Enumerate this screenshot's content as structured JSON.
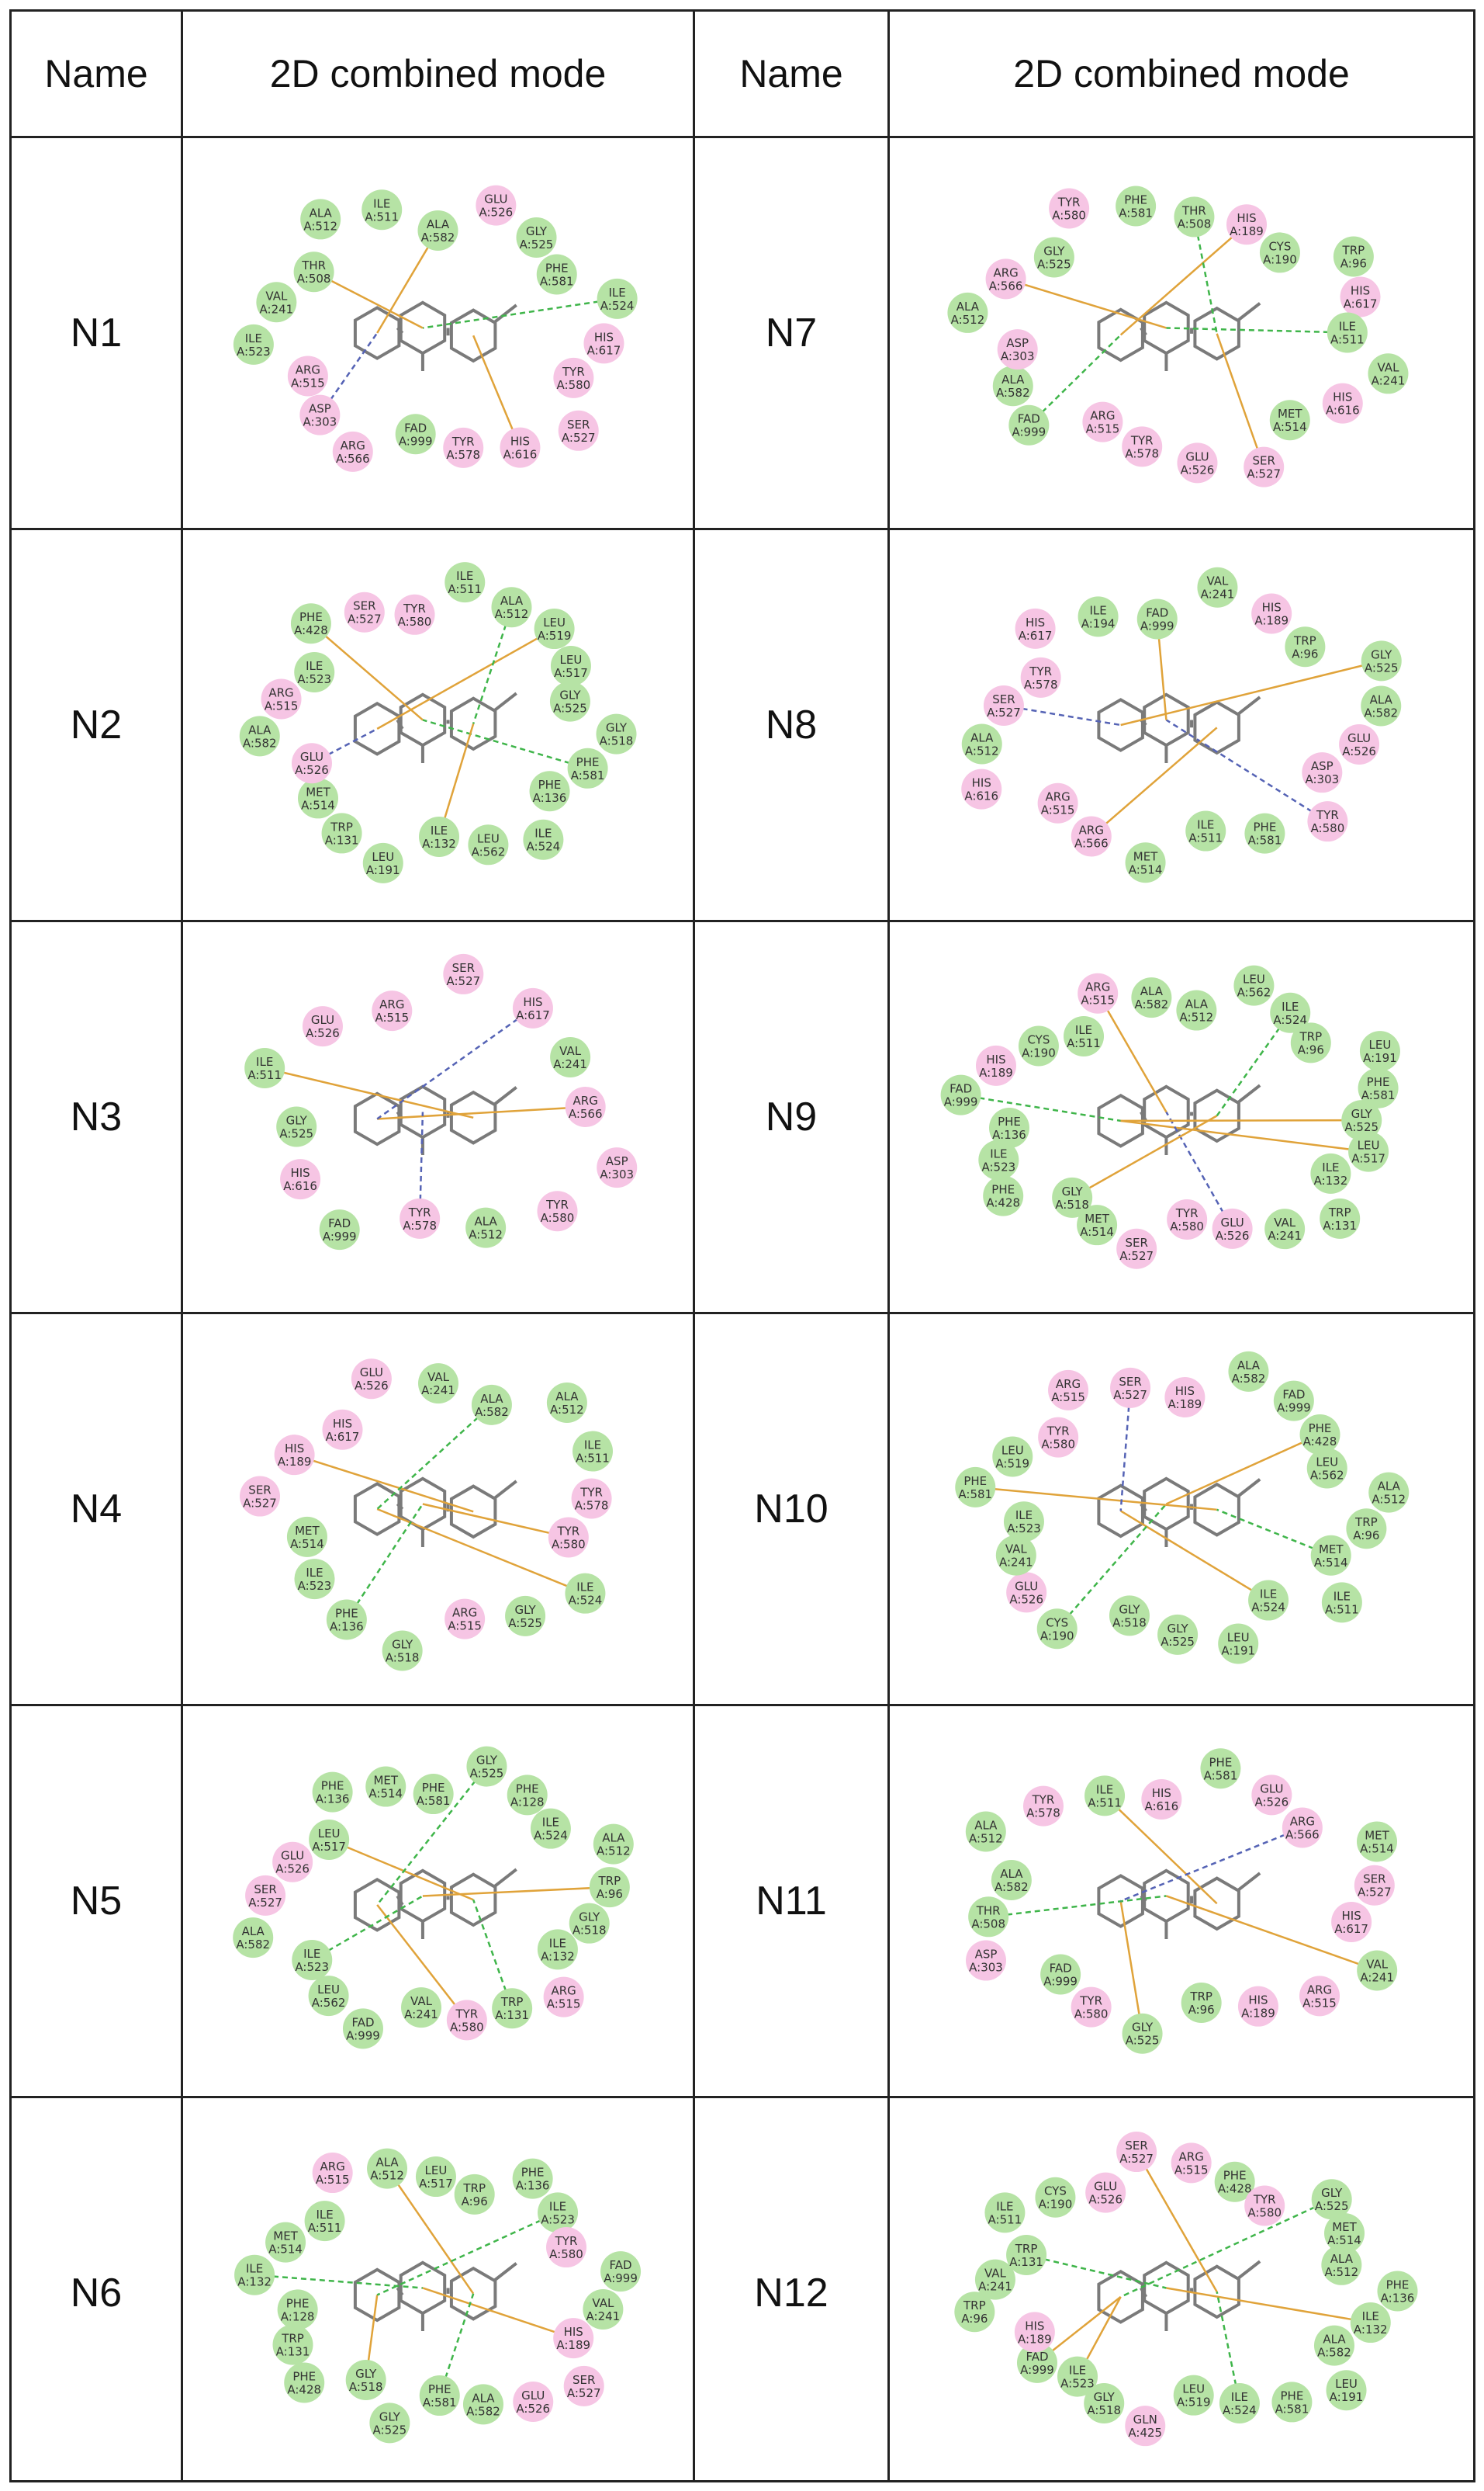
{
  "header": {
    "name_col": "Name",
    "mode_col": "2D combined mode"
  },
  "colors": {
    "hydrophobic": "#b6e3a5",
    "polar": "#f6c5e4",
    "bond": "#7a7a7a",
    "hbond": "#3fb54a",
    "pi": "#e0a33a",
    "salt": "#5563b5"
  },
  "rows": [
    {
      "left": {
        "name": "N1",
        "residues": [
          "ALA A:582",
          "GLU A:526",
          "GLY A:525",
          "PHE A:581",
          "ILE A:524",
          "HIS A:617",
          "TYR A:580",
          "SER A:527",
          "HIS A:616",
          "TYR A:578",
          "FAD A:999",
          "ARG A:566",
          "ASP A:303",
          "ARG A:515",
          "ILE A:523",
          "VAL A:241",
          "THR A:508",
          "ALA A:512",
          "ILE A:511"
        ]
      },
      "right": {
        "name": "N7",
        "residues": [
          "HIS A:189",
          "CYS A:190",
          "TRP A:96",
          "HIS A:617",
          "ILE A:511",
          "VAL A:241",
          "HIS A:616",
          "MET A:514",
          "SER A:527",
          "GLU A:526",
          "TYR A:578",
          "ARG A:515",
          "FAD A:999",
          "ALA A:582",
          "ASP A:303",
          "ALA A:512",
          "ARG A:566",
          "GLY A:525",
          "TYR A:580",
          "PHE A:581",
          "THR A:508"
        ]
      }
    },
    {
      "left": {
        "name": "N2",
        "residues": [
          "LEU A:519",
          "LEU A:517",
          "GLY A:525",
          "GLY A:518",
          "PHE A:581",
          "PHE A:136",
          "ILE A:524",
          "LEU A:562",
          "ILE A:132",
          "LEU A:191",
          "TRP A:131",
          "MET A:514",
          "GLU A:526",
          "ALA A:582",
          "ARG A:515",
          "ILE A:523",
          "PHE A:428",
          "SER A:527",
          "TYR A:580",
          "ILE A:511",
          "ALA A:512"
        ]
      },
      "right": {
        "name": "N8",
        "residues": [
          "GLY A:525",
          "ALA A:582",
          "GLU A:526",
          "ASP A:303",
          "TYR A:580",
          "PHE A:581",
          "ILE A:511",
          "MET A:514",
          "ARG A:566",
          "ARG A:515",
          "HIS A:616",
          "ALA A:512",
          "SER A:527",
          "TYR A:578",
          "HIS A:617",
          "ILE A:194",
          "FAD A:999",
          "VAL A:241",
          "HIS A:189",
          "TRP A:96"
        ]
      }
    },
    {
      "left": {
        "name": "N3",
        "residues": [
          "ARG A:566",
          "ASP A:303",
          "TYR A:580",
          "ALA A:512",
          "TYR A:578",
          "FAD A:999",
          "HIS A:616",
          "GLY A:525",
          "ILE A:511",
          "GLU A:526",
          "ARG A:515",
          "SER A:527",
          "HIS A:617",
          "VAL A:241"
        ]
      },
      "right": {
        "name": "N9",
        "residues": [
          "LEU A:517",
          "ILE A:132",
          "TRP A:131",
          "VAL A:241",
          "GLU A:526",
          "TYR A:580",
          "SER A:527",
          "MET A:514",
          "GLY A:518",
          "PHE A:428",
          "ILE A:523",
          "PHE A:136",
          "FAD A:999",
          "HIS A:189",
          "CYS A:190",
          "ILE A:511",
          "ARG A:515",
          "ALA A:582",
          "ALA A:512",
          "LEU A:562",
          "ILE A:524",
          "TRP A:96",
          "LEU A:191",
          "PHE A:581",
          "GLY A:525"
        ]
      }
    },
    {
      "left": {
        "name": "N4",
        "residues": [
          "ILE A:524",
          "GLY A:525",
          "ARG A:515",
          "GLY A:518",
          "PHE A:136",
          "ILE A:523",
          "MET A:514",
          "SER A:527",
          "HIS A:189",
          "HIS A:617",
          "GLU A:526",
          "VAL A:241",
          "ALA A:582",
          "ALA A:512",
          "ILE A:511",
          "TYR A:578",
          "TYR A:580"
        ]
      },
      "right": {
        "name": "N10",
        "residues": [
          "ILE A:524",
          "LEU A:191",
          "GLY A:525",
          "GLY A:518",
          "CYS A:190",
          "GLU A:526",
          "VAL A:241",
          "ILE A:523",
          "PHE A:581",
          "LEU A:519",
          "TYR A:580",
          "ARG A:515",
          "SER A:527",
          "HIS A:189",
          "ALA A:582",
          "FAD A:999",
          "PHE A:428",
          "LEU A:562",
          "ALA A:512",
          "TRP A:96",
          "MET A:514",
          "ILE A:511"
        ]
      }
    },
    {
      "left": {
        "name": "N5",
        "residues": [
          "TYR A:580",
          "VAL A:241",
          "FAD A:999",
          "LEU A:562",
          "ILE A:523",
          "ALA A:582",
          "SER A:527",
          "GLU A:526",
          "LEU A:517",
          "PHE A:136",
          "MET A:514",
          "PHE A:581",
          "GLY A:525",
          "PHE A:128",
          "ILE A:524",
          "ALA A:512",
          "TRP A:96",
          "GLY A:518",
          "ILE A:132",
          "ARG A:515",
          "TRP A:131"
        ]
      },
      "right": {
        "name": "N11",
        "residues": [
          "GLY A:525",
          "TYR A:580",
          "FAD A:999",
          "ASP A:303",
          "THR A:508",
          "ALA A:582",
          "ALA A:512",
          "TYR A:578",
          "ILE A:511",
          "HIS A:616",
          "PHE A:581",
          "GLU A:526",
          "ARG A:566",
          "MET A:514",
          "SER A:527",
          "HIS A:617",
          "VAL A:241",
          "ARG A:515",
          "HIS A:189",
          "TRP A:96"
        ]
      }
    },
    {
      "left": {
        "name": "N6",
        "residues": [
          "GLY A:518",
          "PHE A:428",
          "TRP A:131",
          "PHE A:128",
          "ILE A:132",
          "MET A:514",
          "ILE A:511",
          "ARG A:515",
          "ALA A:512",
          "LEU A:517",
          "TRP A:96",
          "PHE A:136",
          "ILE A:523",
          "TYR A:580",
          "FAD A:999",
          "VAL A:241",
          "HIS A:189",
          "SER A:527",
          "GLU A:526",
          "ALA A:582",
          "PHE A:581",
          "GLY A:525"
        ]
      },
      "right": {
        "name": "N12",
        "residues": [
          "FAD A:999",
          "HIS A:189",
          "TRP A:96",
          "VAL A:241",
          "TRP A:131",
          "ILE A:511",
          "CYS A:190",
          "GLU A:526",
          "SER A:527",
          "ARG A:515",
          "PHE A:428",
          "TYR A:580",
          "GLY A:525",
          "MET A:514",
          "ALA A:512",
          "PHE A:136",
          "ILE A:132",
          "ALA A:582",
          "LEU A:191",
          "PHE A:581",
          "ILE A:524",
          "LEU A:519",
          "GLN A:425",
          "GLY A:518",
          "ILE A:523"
        ]
      }
    }
  ]
}
